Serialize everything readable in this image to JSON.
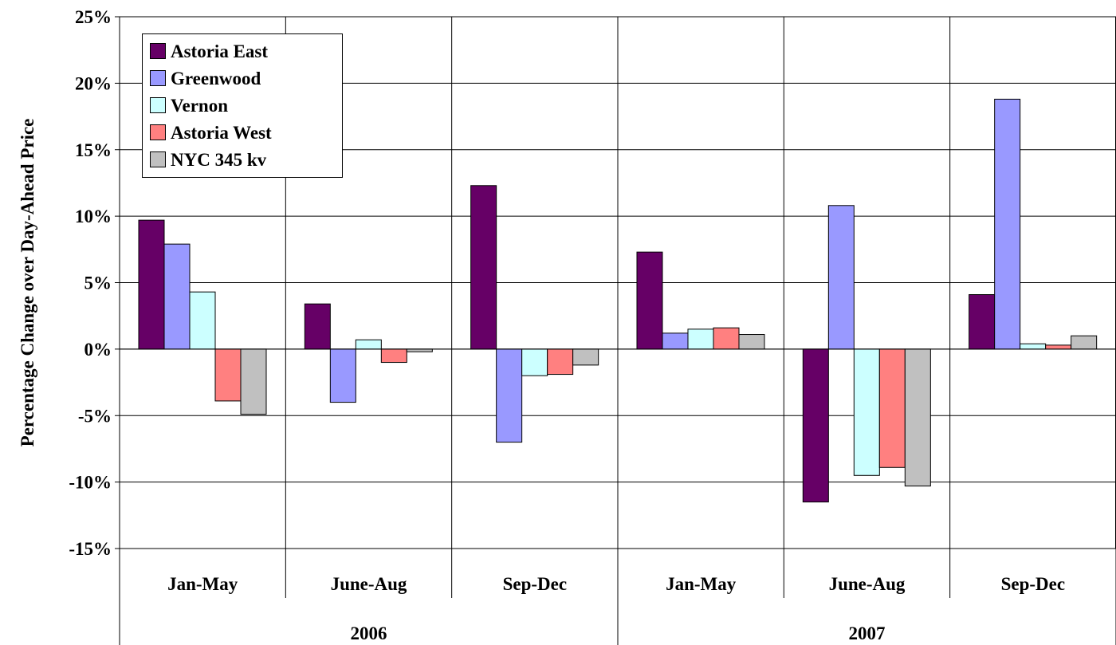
{
  "chart_data": {
    "type": "bar",
    "title": "",
    "xlabel": "",
    "ylabel": "Percentage Change over Day-Ahead Price",
    "ylim": [
      -15,
      25
    ],
    "ytick_labels": [
      "25%",
      "20%",
      "15%",
      "10%",
      "5%",
      "0%",
      "-5%",
      "-10%",
      "-15%"
    ],
    "grid": true,
    "legend_position": "top-left",
    "categories": [
      "Jan-May",
      "June-Aug",
      "Sep-Dec",
      "Jan-May",
      "June-Aug",
      "Sep-Dec"
    ],
    "groups": [
      {
        "label": "2006",
        "span": 3
      },
      {
        "label": "2007",
        "span": 3
      }
    ],
    "series": [
      {
        "name": "Astoria East",
        "color": "#660066",
        "values": [
          9.7,
          3.4,
          12.3,
          7.3,
          -11.5,
          4.1
        ]
      },
      {
        "name": "Greenwood",
        "color": "#9999ff",
        "values": [
          7.9,
          -4.0,
          -7.0,
          1.2,
          10.8,
          18.8
        ]
      },
      {
        "name": "Vernon",
        "color": "#ccffff",
        "values": [
          4.3,
          0.7,
          -2.0,
          1.5,
          -9.5,
          0.4
        ]
      },
      {
        "name": "Astoria West",
        "color": "#ff8080",
        "values": [
          -3.9,
          -1.0,
          -1.9,
          1.6,
          -8.9,
          0.3
        ]
      },
      {
        "name": "NYC 345 kv",
        "color": "#c0c0c0",
        "values": [
          -4.9,
          -0.2,
          -1.2,
          1.1,
          -10.3,
          1.0
        ]
      }
    ]
  }
}
